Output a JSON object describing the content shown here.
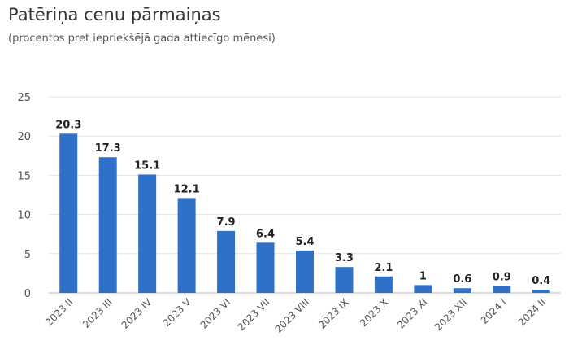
{
  "chart_data": {
    "type": "bar",
    "title": "Patēriņa cenu pārmaiņas",
    "subtitle": "(procentos pret iepriekšējā gada attiecīgo mēnesi)",
    "xlabel": "",
    "ylabel": "",
    "ylim": [
      0,
      25
    ],
    "yticks": [
      "0",
      "5",
      "10",
      "15",
      "20",
      "25"
    ],
    "grid": true,
    "legend": "none",
    "bar_color": "#2f71c8",
    "categories": [
      "2023 II",
      "2023 III",
      "2023 IV",
      "2023 V",
      "2023 VI",
      "2023 VII",
      "2023 VIII",
      "2023 IX",
      "2023 X",
      "2023 XI",
      "2023 XII",
      "2024 I",
      "2024 II"
    ],
    "values": [
      20.3,
      17.3,
      15.1,
      12.1,
      7.9,
      6.4,
      5.4,
      3.3,
      2.1,
      1,
      0.6,
      0.9,
      0.4
    ],
    "value_labels": [
      "20.3",
      "17.3",
      "15.1",
      "12.1",
      "7.9",
      "6.4",
      "5.4",
      "3.3",
      "2.1",
      "1",
      "0.6",
      "0.9",
      "0.4"
    ]
  }
}
